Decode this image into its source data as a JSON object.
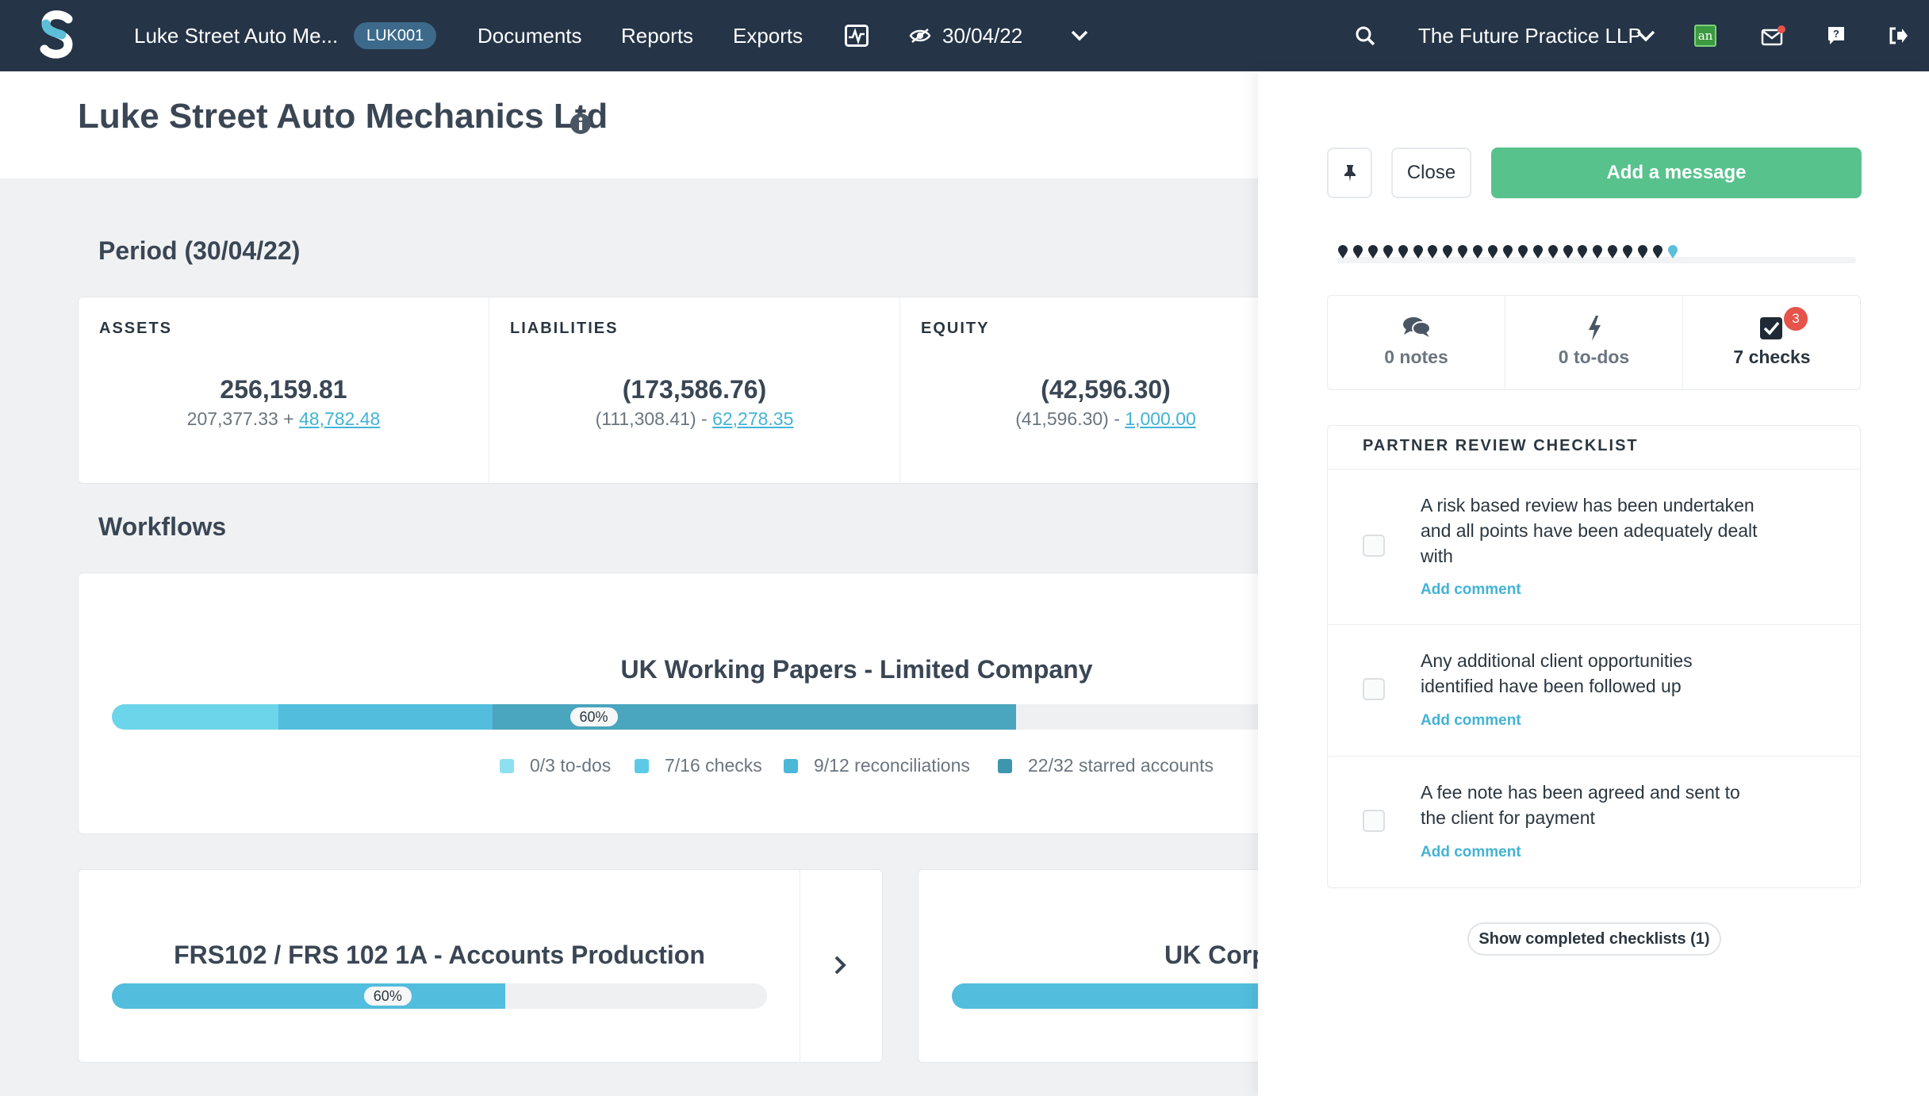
{
  "nav": {
    "client_name": "Luke Street Auto Me...",
    "client_code": "LUK001",
    "documents": "Documents",
    "reports": "Reports",
    "exports": "Exports",
    "period_date": "30/04/22",
    "practice": "The Future Practice LLP",
    "user_initials": "an",
    "icons": [
      "logo-icon",
      "activity-icon",
      "eye-icon",
      "chevron-down-icon",
      "search-icon",
      "mail-icon",
      "help-icon",
      "logout-icon"
    ],
    "accent_color": "#253447"
  },
  "page": {
    "title": "Luke Street Auto Mechanics Ltd"
  },
  "period": {
    "title": "Period (30/04/22)",
    "assets": {
      "label": "ASSETS",
      "total": "256,159.81",
      "base": "207,377.33 + ",
      "delta": "48,782.48"
    },
    "liabilities": {
      "label": "LIABILITIES",
      "total": "(173,586.76)",
      "base": "(111,308.41) - ",
      "delta": "62,278.35"
    },
    "equity": {
      "label": "EQUITY",
      "total": "(42,596.30)",
      "base": "(41,596.30) - ",
      "delta": "1,000.00"
    }
  },
  "workflows": {
    "title": "Workflows",
    "main": {
      "title": "UK Working Papers - Limited Company",
      "progress_pct": "60%",
      "progress_value": 0.6,
      "segments": [
        {
          "color": "#6dd5ea",
          "fraction": 0.14
        },
        {
          "color": "#52bddc",
          "fraction": 0.18
        },
        {
          "color": "#4aa5be",
          "fraction": 0.44
        }
      ],
      "legend": [
        {
          "label": "0/3 to-dos",
          "color": "#8ee0f0"
        },
        {
          "label": "7/16 checks",
          "color": "#5ccae6"
        },
        {
          "label": "9/12 reconciliations",
          "color": "#4cb7d6"
        },
        {
          "label": "22/32 starred accounts",
          "color": "#3d96ad"
        }
      ]
    },
    "frs": {
      "title": "FRS102 / FRS 102 1A - Accounts Production",
      "progress_pct": "60%",
      "progress_value": 0.6
    },
    "corp": {
      "title": "UK Corp"
    }
  },
  "panel": {
    "close": "Close",
    "add_message": "Add a message",
    "timeline_dots": 23,
    "notes": "0 notes",
    "todos": "0 to-dos",
    "checks": "7 checks",
    "checks_badge": "3",
    "checklist_title": "PARTNER REVIEW CHECKLIST",
    "items": [
      {
        "text": "A risk based review has been undertaken and all points have been adequately dealt with",
        "add": "Add comment"
      },
      {
        "text": "Any additional client opportunities identified have been followed up",
        "add": "Add comment"
      },
      {
        "text": "A fee note has been agreed and sent to the client for payment",
        "add": "Add comment"
      }
    ],
    "show_completed": "Show completed checklists (1)",
    "success_color": "#58c28c",
    "link_color": "#43b3d6"
  }
}
